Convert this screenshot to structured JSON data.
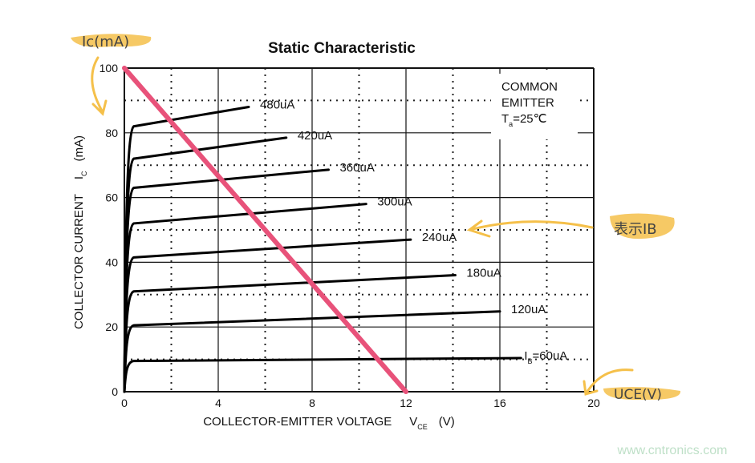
{
  "chart_data": {
    "type": "line",
    "title": "Static Characteristic",
    "xlabel": "COLLECTOR-EMITTER VOLTAGE",
    "xlabel_symbol": "V",
    "xlabel_sub": "CE",
    "xlabel_unit": "(V)",
    "ylabel": "COLLECTOR CURRENT",
    "ylabel_symbol": "I",
    "ylabel_sub": "C",
    "ylabel_unit": "(mA)",
    "xlim": [
      0,
      20
    ],
    "ylim": [
      0,
      100
    ],
    "xticks": [
      "0",
      "4",
      "8",
      "12",
      "16",
      "20"
    ],
    "yticks": [
      "0",
      "20",
      "40",
      "60",
      "80",
      "100"
    ],
    "grid": true,
    "conditions": {
      "line1": "COMMON",
      "line2": "EMITTER",
      "temp_symbol": "T",
      "temp_sub": "a",
      "temp_value": "=25℃"
    },
    "series": [
      {
        "name": "480uA",
        "knee": [
          0.4,
          82
        ],
        "end": [
          5.3,
          88
        ]
      },
      {
        "name": "420uA",
        "knee": [
          0.4,
          72
        ],
        "end": [
          6.9,
          78.5
        ]
      },
      {
        "name": "360uA",
        "knee": [
          0.4,
          63
        ],
        "end": [
          8.7,
          68.6
        ]
      },
      {
        "name": "300uA",
        "knee": [
          0.4,
          52
        ],
        "end": [
          10.3,
          58
        ]
      },
      {
        "name": "240uA",
        "knee": [
          0.4,
          41.5
        ],
        "end": [
          12.2,
          47
        ]
      },
      {
        "name": "180uA",
        "knee": [
          0.4,
          31
        ],
        "end": [
          14.1,
          36
        ]
      },
      {
        "name": "120uA",
        "knee": [
          0.4,
          20.5
        ],
        "end": [
          16,
          24.8
        ]
      },
      {
        "name": "=60uA",
        "name_prefix": "I",
        "name_sub": "B",
        "knee": [
          0.4,
          9.5
        ],
        "end": [
          16.9,
          10.4
        ]
      }
    ],
    "load_line": {
      "from": [
        0,
        100
      ],
      "to": [
        12,
        0
      ],
      "color": "#e8527a"
    },
    "annotations": [
      {
        "text": "Ic(mA)",
        "color": "#f5c04a"
      },
      {
        "text": "表示IB",
        "color": "#f5c04a"
      },
      {
        "text": "UCE(V)",
        "color": "#f5c04a"
      }
    ],
    "watermark": "www.cntronics.com"
  }
}
